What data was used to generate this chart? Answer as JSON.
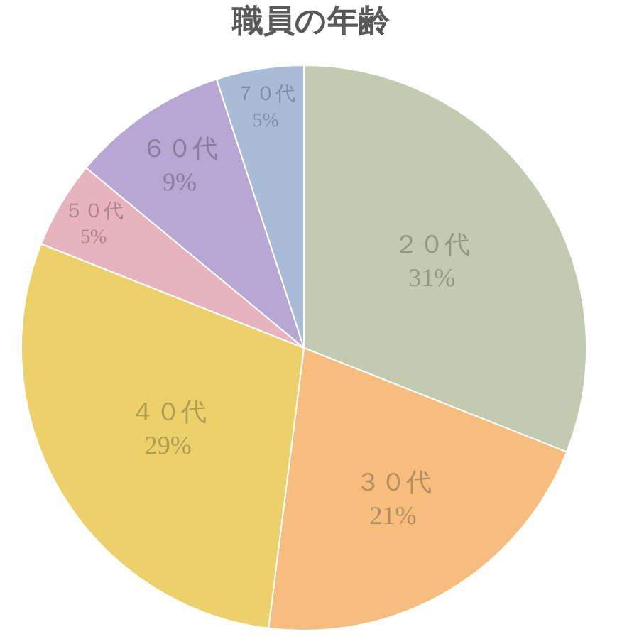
{
  "chart_data": {
    "type": "pie",
    "title": "職員の年齢",
    "categories": [
      "２０代",
      "３０代",
      "４０代",
      "５０代",
      "６０代",
      "７０代"
    ],
    "values": [
      31,
      21,
      29,
      5,
      9,
      5
    ],
    "value_labels": [
      "31%",
      "21%",
      "29%",
      "5%",
      "9%",
      "5%"
    ],
    "colors": [
      "#c2cbb0",
      "#f6bd7e",
      "#ecd06a",
      "#e6b3bf",
      "#b8a6d3",
      "#a8bcd8"
    ],
    "legend": false
  }
}
